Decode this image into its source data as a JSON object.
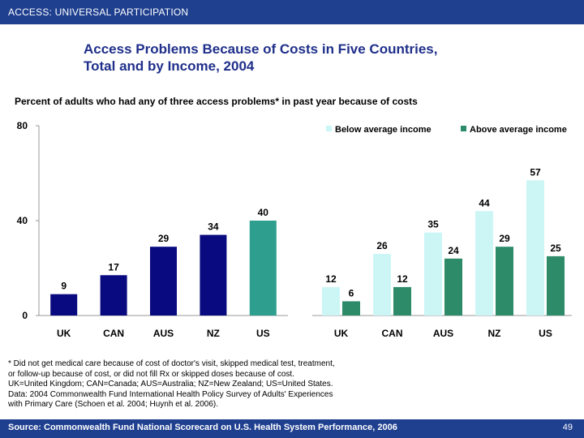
{
  "header": {
    "section": "ACCESS: UNIVERSAL PARTICIPATION"
  },
  "title_line1": "Access Problems Because of Costs in Five Countries,",
  "title_line2": "Total and by Income, 2004",
  "subtitle": "Percent of adults who had any of three access problems* in past year because of costs",
  "colors": {
    "header_bar": "#1f3f8f",
    "title": "#1f2f8a",
    "total_bar_dark": "#0a0a80",
    "total_bar_us": "#2e9e8e",
    "below_average": "#ccf6f6",
    "above_average": "#2e8b6a"
  },
  "chart_data": [
    {
      "type": "bar",
      "categories": [
        "UK",
        "CAN",
        "AUS",
        "NZ",
        "US"
      ],
      "values": [
        9,
        17,
        29,
        34,
        40
      ],
      "ylim": [
        0,
        80
      ],
      "yticks": [
        "0",
        "40",
        "80"
      ],
      "grid": false
    },
    {
      "type": "bar",
      "categories": [
        "UK",
        "CAN",
        "AUS",
        "NZ",
        "US"
      ],
      "series": [
        {
          "name": "Below average income",
          "values": [
            12,
            26,
            35,
            44,
            57
          ]
        },
        {
          "name": "Above average income",
          "values": [
            6,
            12,
            24,
            29,
            25
          ]
        }
      ],
      "ylim": [
        0,
        80
      ],
      "legend": "top",
      "grid": false
    }
  ],
  "notes": [
    "* Did not get medical care because of cost of doctor's visit, skipped medical test, treatment,",
    "or follow-up because of cost, or did not fill Rx or skipped doses because of cost.",
    "UK=United Kingdom; CAN=Canada; AUS=Australia; NZ=New Zealand; US=United States.",
    "Data: 2004 Commonwealth Fund International Health Policy Survey of Adults' Experiences",
    "with Primary Care (Schoen et al. 2004; Huynh et al. 2006)."
  ],
  "footer": {
    "source": "Source: Commonwealth Fund National Scorecard on U.S. Health System Performance, 2006",
    "page": "49"
  }
}
